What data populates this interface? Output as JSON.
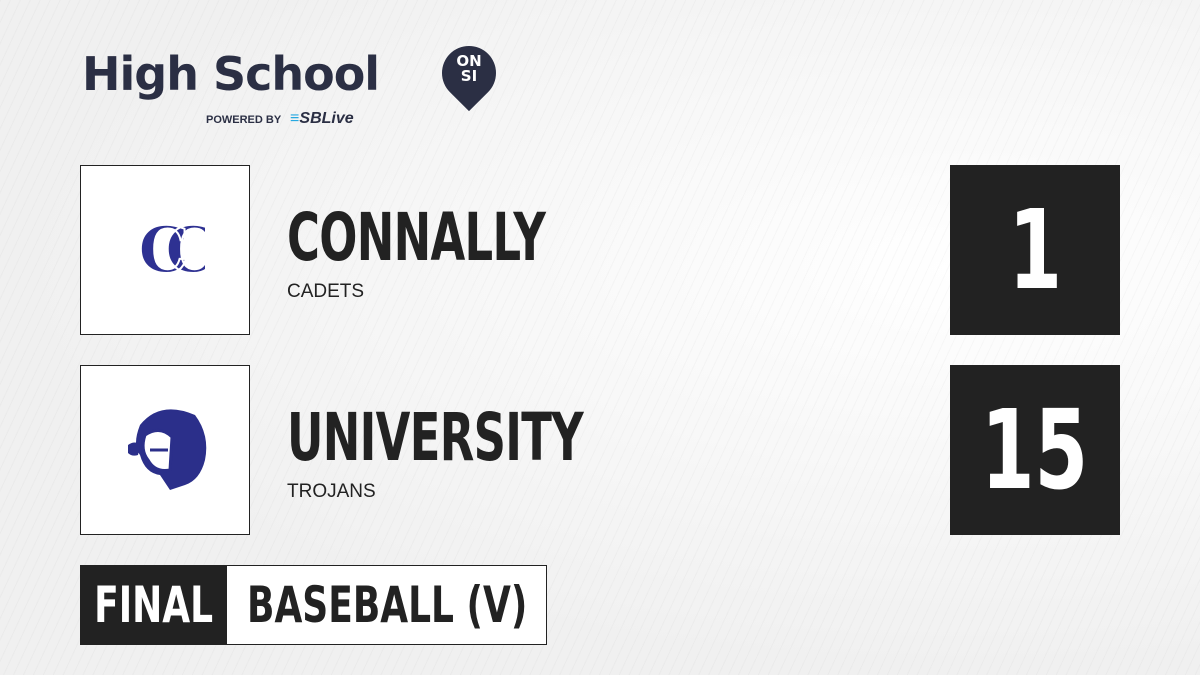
{
  "brand": {
    "title": "High School",
    "pin_text": [
      "ON",
      "SI"
    ],
    "powered_by": "POWERED BY",
    "partner": "SBLive"
  },
  "teams": [
    {
      "name": "CONNALLY",
      "mascot": "CADETS",
      "score": "1",
      "logo_text": "CC",
      "logo_color": "#2e3192"
    },
    {
      "name": "UNIVERSITY",
      "mascot": "TROJANS",
      "score": "15",
      "logo_color": "#2b2f8a"
    }
  ],
  "status": "FINAL",
  "sport": "BASEBALL (V)",
  "colors": {
    "brand": "#2b2f44",
    "accent": "#27a9e1",
    "dark": "#222222"
  }
}
